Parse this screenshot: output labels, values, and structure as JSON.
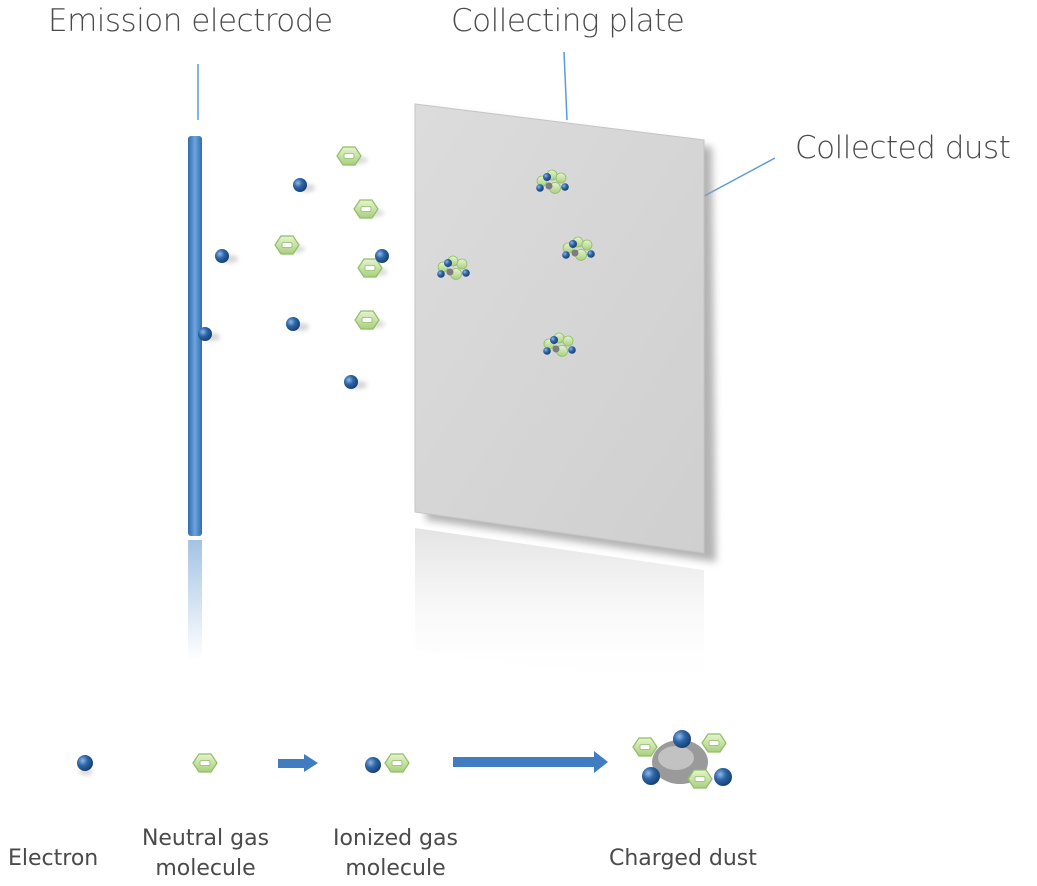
{
  "labels": {
    "emission_electrode": "Emission electrode",
    "collecting_plate": "Collecting plate",
    "collected_dust": "Collected dust"
  },
  "legend": {
    "electron": "Electron",
    "neutral_gas": [
      "Neutral gas",
      "molecule"
    ],
    "ionized_gas": [
      "Ionized gas",
      "molecule"
    ],
    "charged_dust": "Charged dust"
  },
  "colors": {
    "electrode": "#4a86c6",
    "electron": "#2e66a8",
    "gas_molecule": "#c8e3a4",
    "plate": "#d7d7d7",
    "arrow": "#3f7cc0",
    "leader_line": "#5b9bd5",
    "text": "#4a4a4a"
  },
  "icons": [
    "electron-icon",
    "gas-molecule-icon",
    "dust-cluster-icon",
    "right-arrow-icon"
  ]
}
